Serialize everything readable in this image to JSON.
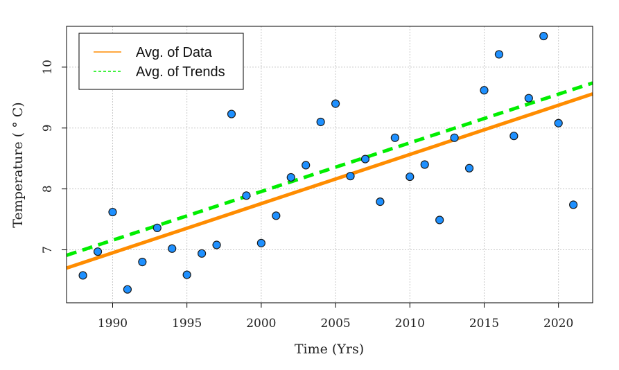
{
  "chart_data": {
    "type": "scatter",
    "xlabel": "Time (Yrs)",
    "ylabel": "Temperature ( ° C)",
    "xlim": [
      1986.9,
      2022.3
    ],
    "ylim": [
      6.13,
      10.67
    ],
    "xticks": [
      1990,
      1995,
      2000,
      2005,
      2010,
      2015,
      2020
    ],
    "yticks": [
      7,
      8,
      9,
      10
    ],
    "grid": true,
    "legend_position": "top-left",
    "legend": [
      {
        "label": "Avg. of Data",
        "color": "#ff8c00",
        "style": "solid"
      },
      {
        "label": "Avg. of Trends",
        "color": "#00ee00",
        "style": "dashed"
      }
    ],
    "point_color": "#1e90ff",
    "series": [
      {
        "type": "scatter",
        "x": [
          1988,
          1989,
          1990,
          1991,
          1992,
          1993,
          1994,
          1995,
          1996,
          1997,
          1998,
          1999,
          2000,
          2001,
          2002,
          2003,
          2004,
          2005,
          2006,
          2007,
          2008,
          2009,
          2010,
          2011,
          2012,
          2013,
          2014,
          2015,
          2016,
          2017,
          2018,
          2019,
          2020,
          2021
        ],
        "y": [
          6.58,
          6.97,
          7.62,
          6.35,
          6.8,
          7.36,
          7.02,
          6.59,
          6.94,
          7.08,
          9.23,
          7.89,
          7.11,
          7.56,
          8.19,
          8.39,
          9.1,
          9.4,
          8.21,
          8.49,
          7.79,
          8.84,
          8.2,
          8.4,
          7.49,
          8.84,
          8.34,
          9.62,
          10.21,
          8.87,
          9.49,
          10.51,
          9.08,
          7.74
        ]
      },
      {
        "name": "Avg. of Data",
        "type": "line",
        "x": [
          1986.9,
          2022.3
        ],
        "y": [
          6.7,
          9.56
        ]
      },
      {
        "name": "Avg. of Trends",
        "type": "line",
        "x": [
          1986.9,
          2022.3
        ],
        "y": [
          6.91,
          9.74
        ]
      }
    ]
  }
}
